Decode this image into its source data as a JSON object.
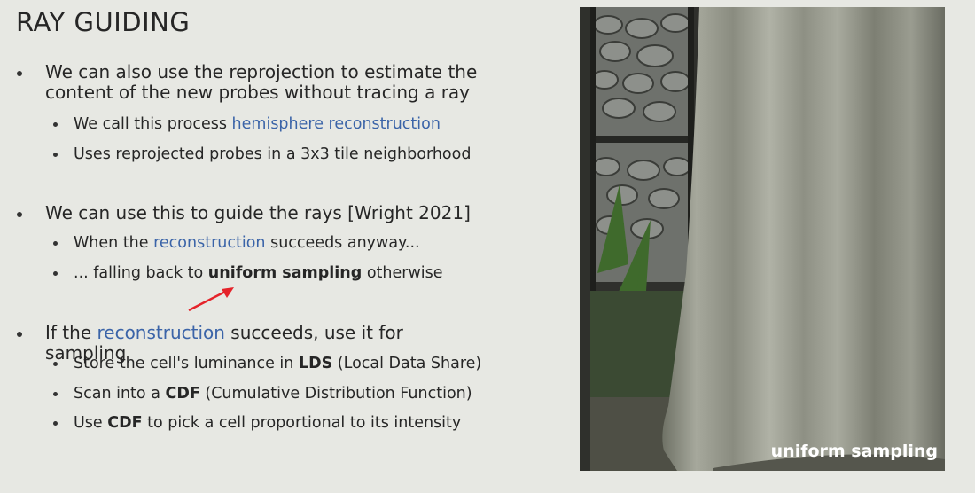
{
  "title": "RAY GUIDING",
  "bullets": [
    {
      "segments": [
        {
          "text": "We can also use the reprojection to estimate the content of the new probes without tracing a ray"
        }
      ],
      "sub_bullets": [
        {
          "segments": [
            {
              "text": "We call this process "
            },
            {
              "text": "hemisphere reconstruction",
              "emphasis": "blue"
            }
          ]
        },
        {
          "segments": [
            {
              "text": "Uses reprojected probes in a 3x3 tile neighborhood"
            }
          ]
        }
      ]
    },
    {
      "segments": [
        {
          "text": "We can use this to guide the rays [Wright 2021]"
        }
      ],
      "sub_bullets": [
        {
          "segments": [
            {
              "text": "When the "
            },
            {
              "text": "reconstruction",
              "emphasis": "blue"
            },
            {
              "text": " succeeds anyway..."
            }
          ]
        },
        {
          "segments": [
            {
              "text": "... falling back to "
            },
            {
              "text": "uniform sampling",
              "emphasis": "bold"
            },
            {
              "text": " otherwise"
            }
          ]
        }
      ]
    },
    {
      "segments": [
        {
          "text": "If the "
        },
        {
          "text": "reconstruction",
          "emphasis": "blue"
        },
        {
          "text": " succeeds, use it for sampling"
        }
      ],
      "sub_bullets": [
        {
          "segments": [
            {
              "text": "Store the cell's luminance in "
            },
            {
              "text": "LDS",
              "emphasis": "bold"
            },
            {
              "text": " (Local Data Share)"
            }
          ]
        },
        {
          "segments": [
            {
              "text": "Scan into a "
            },
            {
              "text": "CDF",
              "emphasis": "bold"
            },
            {
              "text": " (Cumulative Distribution Function)"
            }
          ]
        },
        {
          "segments": [
            {
              "text": "Use "
            },
            {
              "text": "CDF",
              "emphasis": "bold"
            },
            {
              "text": " to pick a cell proportional to its intensity"
            }
          ]
        }
      ]
    }
  ],
  "image": {
    "caption": "uniform sampling"
  }
}
